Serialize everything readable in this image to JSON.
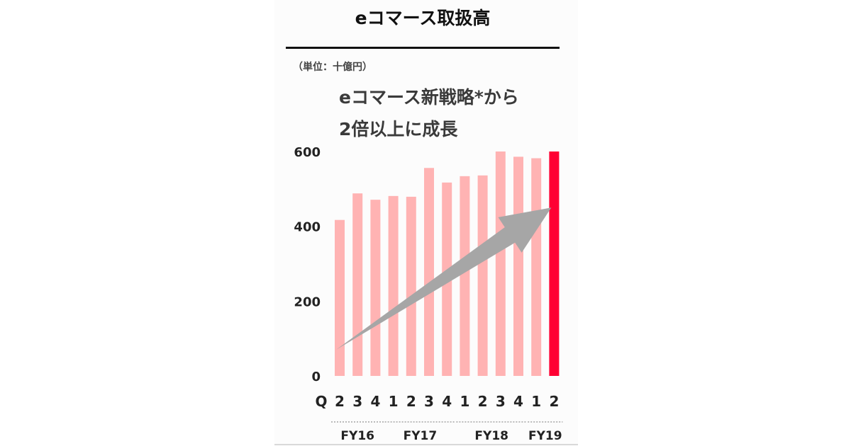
{
  "title": "eコマース取扱高",
  "unit_label": "（単位：十億円）",
  "headline": {
    "line1": "eコマース新戦略*から",
    "line2": "2倍以上に成長"
  },
  "colors": {
    "bar": "#ffb3b3",
    "highlight": "#ff0033",
    "arrow": "#a6a6a6"
  },
  "chart_data": {
    "type": "bar",
    "title": "eコマース取扱高",
    "ylabel": "（単位：十億円）",
    "ylim": [
      0,
      600
    ],
    "y_ticks": [
      "0",
      "200",
      "400",
      "600"
    ],
    "x_axis_prefix": "Q",
    "categories": [
      "2",
      "3",
      "4",
      "1",
      "2",
      "3",
      "4",
      "1",
      "2",
      "3",
      "4",
      "1",
      "2"
    ],
    "values": [
      417,
      488,
      471,
      481,
      479,
      556,
      517,
      534,
      536,
      600,
      586,
      582,
      600
    ],
    "highlight_index": 12,
    "fiscal_years": [
      {
        "label": "FY16",
        "start": 0,
        "end": 2
      },
      {
        "label": "FY17",
        "start": 3,
        "end": 6
      },
      {
        "label": "FY18",
        "start": 7,
        "end": 10
      },
      {
        "label": "FY19",
        "start": 11,
        "end": 12
      }
    ],
    "trend_arrow": true,
    "grid": false
  }
}
